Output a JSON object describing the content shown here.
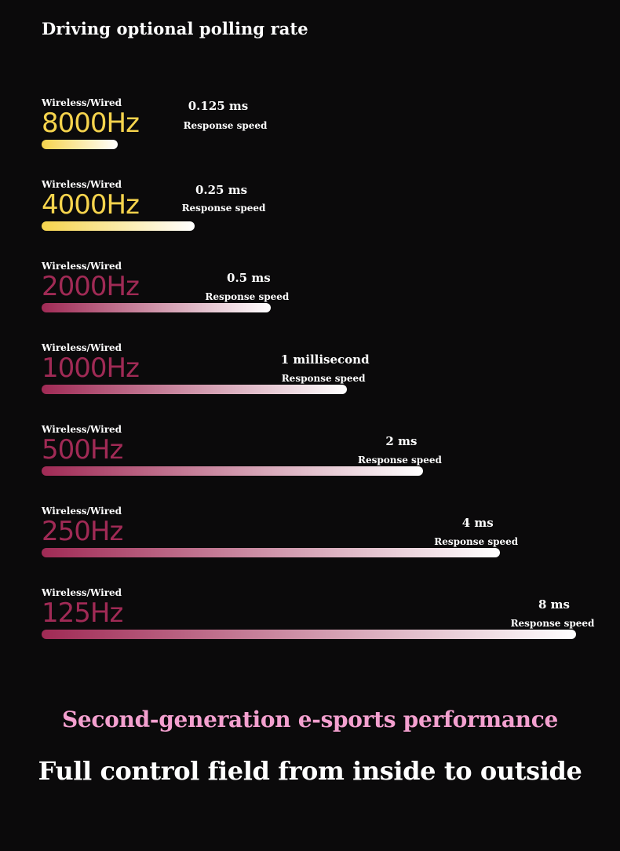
{
  "title": "Driving optional polling rate",
  "colors": {
    "high": "#f6d44d",
    "low": "#a02a55",
    "bar_end": "#ffffff",
    "tagline": "#f3a0cf"
  },
  "chart_data": {
    "type": "bar",
    "orientation": "horizontal",
    "sublabel": "Wireless/Wired",
    "value_caption": "Response speed",
    "categories": [
      "8000Hz",
      "4000Hz",
      "2000Hz",
      "1000Hz",
      "500Hz",
      "250Hz",
      "125Hz"
    ],
    "polling_rate_hz": [
      8000,
      4000,
      2000,
      1000,
      500,
      250,
      125
    ],
    "value_labels": [
      "0.125 ms",
      "0.25 ms",
      "0.5 ms",
      "1 millisecond",
      "2 ms",
      "4 ms",
      "8 ms"
    ],
    "bar_values": [
      1,
      2,
      3,
      4,
      5,
      6,
      7
    ],
    "bar_max": 7
  },
  "footer": {
    "tagline": "Second-generation e-sports performance",
    "headline": "Full control field from inside to outside"
  }
}
